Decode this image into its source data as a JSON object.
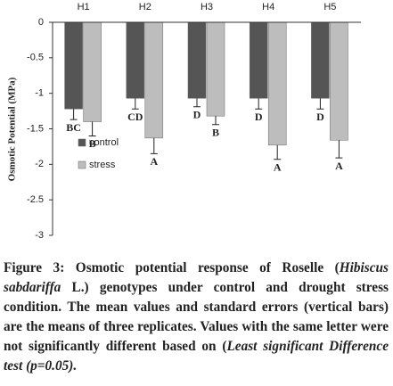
{
  "chart_data": {
    "type": "bar",
    "y_label": "Osmotic Potential (MPa)",
    "categories": [
      "H1",
      "H2",
      "H3",
      "H4",
      "H5"
    ],
    "series": [
      {
        "name": "control",
        "color": "#555555",
        "values": [
          -1.22,
          -1.07,
          -1.07,
          -1.07,
          -1.07
        ],
        "errors": [
          0.15,
          0.15,
          0.12,
          0.15,
          0.15
        ],
        "letters": [
          "BC",
          "CD",
          "D",
          "D",
          "D"
        ]
      },
      {
        "name": "stress",
        "color": "#bdbdbd",
        "values": [
          -1.4,
          -1.63,
          -1.32,
          -1.73,
          -1.66
        ],
        "errors": [
          0.2,
          0.22,
          0.12,
          0.2,
          0.25
        ],
        "letters": [
          "B",
          "A",
          "B",
          "A",
          "A"
        ]
      }
    ],
    "ylim": [
      0,
      -3
    ],
    "yticks": [
      0,
      -0.5,
      -1,
      -1.5,
      -2,
      -2.5,
      -3
    ]
  },
  "caption": [
    {
      "text": "Figure 3: Osmotic potential response of Roselle (",
      "italic": false
    },
    {
      "text": "Hibiscus sabdariffa",
      "italic": true
    },
    {
      "text": " L.) genotypes under control and drought stress condition. The mean values and standard errors (vertical bars) are the means of three replicates. Values with the same letter were not significantly different based on (",
      "italic": false
    },
    {
      "text": "Least significant Difference test (p=0.05).",
      "italic": true
    }
  ]
}
